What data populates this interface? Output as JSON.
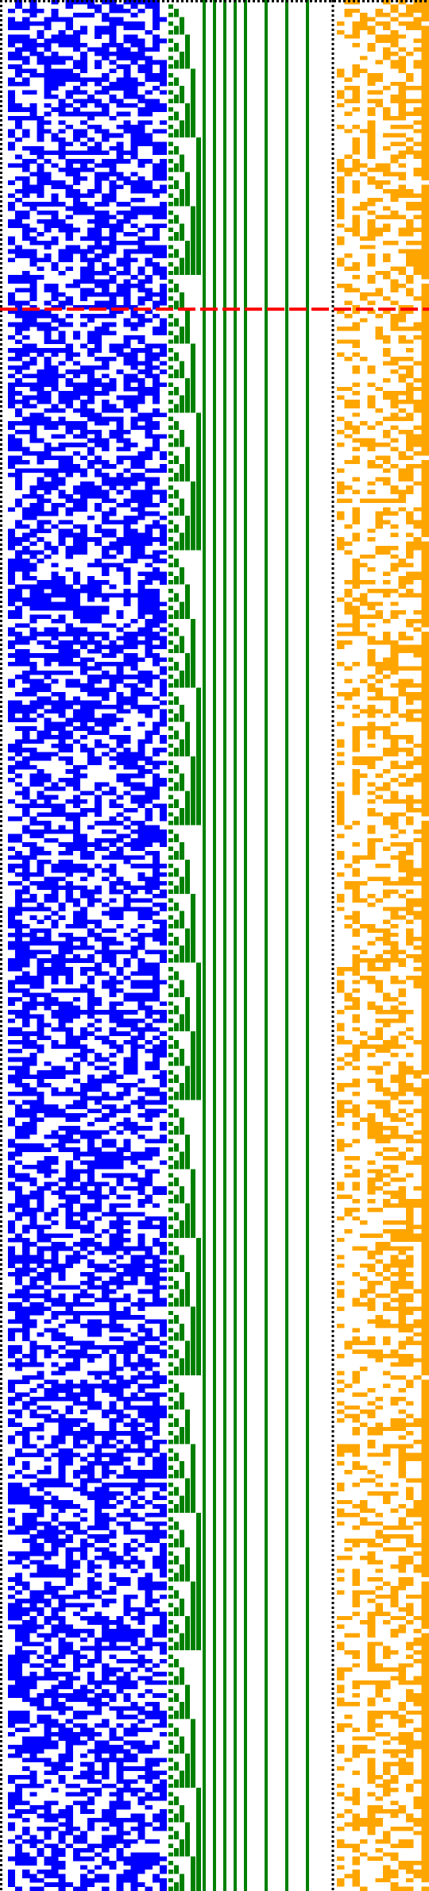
{
  "colors": {
    "background": "#ffffff",
    "random_bits": "#0000ff",
    "counter_bits": "#008000",
    "output_bits": "#ffa500",
    "boundary": "#000000",
    "marker_line": "#ff0000"
  },
  "panels": {
    "random_columns": 22,
    "counter_columns": 18,
    "output_columns": 12,
    "rows": 440
  },
  "marker": {
    "row_fraction": 0.1635
  },
  "boundaries": {
    "style": "dotted"
  }
}
